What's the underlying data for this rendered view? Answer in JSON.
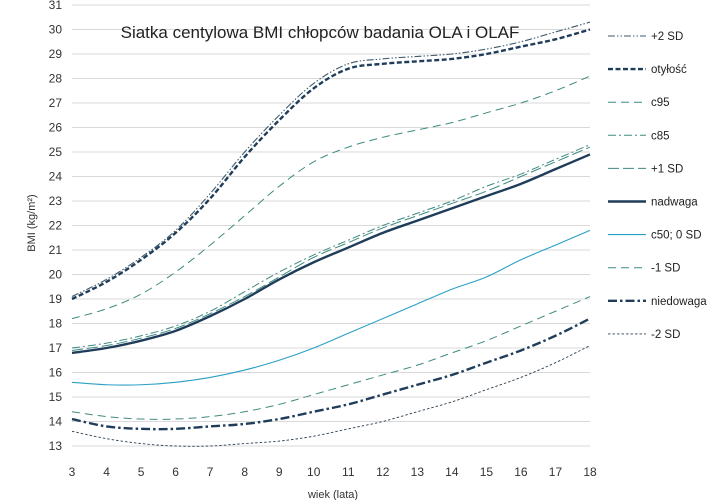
{
  "chart_data": {
    "type": "line",
    "title": "Siatka centylowa BMI chłopców badania OLA i OLAF",
    "xlabel": "wiek (lata)",
    "ylabel": "BMI (kg/m²)",
    "xlim": [
      3,
      18
    ],
    "ylim": [
      13,
      31
    ],
    "x_ticks": [
      3,
      4,
      5,
      6,
      7,
      8,
      9,
      10,
      11,
      12,
      13,
      14,
      15,
      16,
      17,
      18
    ],
    "y_ticks": [
      13,
      14,
      15,
      16,
      17,
      18,
      19,
      20,
      21,
      22,
      23,
      24,
      25,
      26,
      27,
      28,
      29,
      30,
      31
    ],
    "grid": "horizontal",
    "legend_position": "right",
    "x": [
      3,
      4,
      5,
      6,
      7,
      8,
      9,
      10,
      11,
      12,
      13,
      14,
      15,
      16,
      17,
      18
    ],
    "series": [
      {
        "name": "+2 SD",
        "color": "#3f5a6b",
        "dash": "dashdotdot",
        "values": [
          19.1,
          19.8,
          20.7,
          21.8,
          23.3,
          25.0,
          26.5,
          27.8,
          28.6,
          28.8,
          28.9,
          29.0,
          29.2,
          29.5,
          29.9,
          30.3
        ]
      },
      {
        "name": "otyłość",
        "color": "#1f3d5a",
        "dash": "dash-thick",
        "values": [
          19.0,
          19.7,
          20.6,
          21.7,
          23.1,
          24.8,
          26.3,
          27.6,
          28.4,
          28.6,
          28.7,
          28.8,
          29.0,
          29.3,
          29.6,
          30.0
        ]
      },
      {
        "name": "c95",
        "color": "#3e8a80",
        "dash": "dash",
        "values": [
          18.2,
          18.6,
          19.2,
          20.1,
          21.2,
          22.4,
          23.6,
          24.6,
          25.2,
          25.6,
          25.9,
          26.2,
          26.6,
          27.0,
          27.5,
          28.1
        ]
      },
      {
        "name": "c85",
        "color": "#3e8a80",
        "dash": "dashdot",
        "values": [
          17.0,
          17.2,
          17.5,
          17.9,
          18.5,
          19.3,
          20.1,
          20.8,
          21.4,
          22.0,
          22.5,
          23.0,
          23.6,
          24.1,
          24.7,
          25.3
        ]
      },
      {
        "name": "+1 SD",
        "color": "#3e8a80",
        "dash": "longdash",
        "values": [
          16.9,
          17.1,
          17.4,
          17.8,
          18.4,
          19.1,
          19.9,
          20.7,
          21.3,
          21.9,
          22.4,
          22.9,
          23.4,
          24.0,
          24.6,
          25.2
        ]
      },
      {
        "name": "nadwaga",
        "color": "#1f3d5a",
        "dash": "solid-thick",
        "values": [
          16.8,
          17.0,
          17.3,
          17.7,
          18.3,
          19.0,
          19.8,
          20.5,
          21.1,
          21.7,
          22.2,
          22.7,
          23.2,
          23.7,
          24.3,
          24.9
        ]
      },
      {
        "name": "c50; 0 SD",
        "color": "#2aa0c6",
        "dash": "solid",
        "values": [
          15.6,
          15.5,
          15.5,
          15.6,
          15.8,
          16.1,
          16.5,
          17.0,
          17.6,
          18.2,
          18.8,
          19.4,
          19.9,
          20.6,
          21.2,
          21.8
        ]
      },
      {
        "name": "-1 SD",
        "color": "#3e8a80",
        "dash": "dash",
        "values": [
          14.4,
          14.2,
          14.1,
          14.1,
          14.2,
          14.4,
          14.7,
          15.1,
          15.5,
          15.9,
          16.3,
          16.8,
          17.3,
          17.9,
          18.5,
          19.1
        ]
      },
      {
        "name": "niedowaga",
        "color": "#1f3d5a",
        "dash": "dashdot-thick",
        "values": [
          14.1,
          13.8,
          13.7,
          13.7,
          13.8,
          13.9,
          14.1,
          14.4,
          14.7,
          15.1,
          15.5,
          15.9,
          16.4,
          16.9,
          17.5,
          18.2
        ]
      },
      {
        "name": "-2 SD",
        "color": "#2c3e50",
        "dash": "dot",
        "values": [
          13.6,
          13.3,
          13.1,
          13.0,
          13.0,
          13.1,
          13.2,
          13.4,
          13.7,
          14.0,
          14.4,
          14.8,
          15.3,
          15.8,
          16.4,
          17.1
        ]
      }
    ]
  }
}
